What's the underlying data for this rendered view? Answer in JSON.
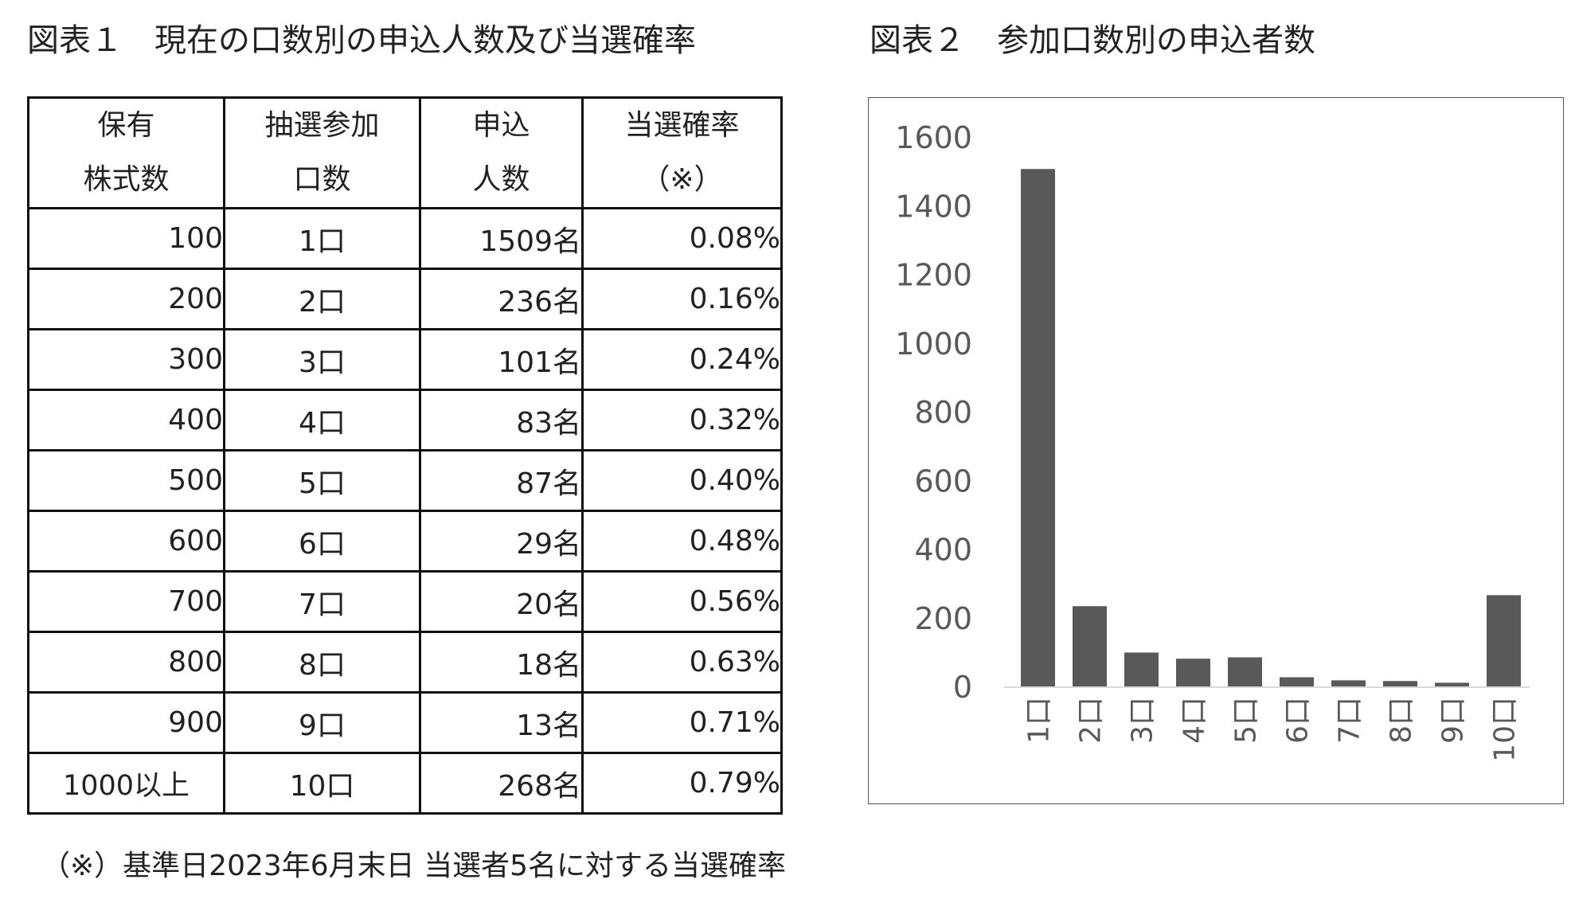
{
  "figure1": {
    "title": "図表１　現在の口数別の申込人数及び当選確率",
    "headers": [
      [
        "保有",
        "株式数"
      ],
      [
        "抽選参加",
        "口数"
      ],
      [
        "申込",
        "人数"
      ],
      [
        "当選確率",
        "（※）"
      ]
    ],
    "rows": [
      [
        "100",
        "1口",
        "1509名",
        "0.08%"
      ],
      [
        "200",
        "2口",
        "236名",
        "0.16%"
      ],
      [
        "300",
        "3口",
        "101名",
        "0.24%"
      ],
      [
        "400",
        "4口",
        "83名",
        "0.32%"
      ],
      [
        "500",
        "5口",
        "87名",
        "0.40%"
      ],
      [
        "600",
        "6口",
        "29名",
        "0.48%"
      ],
      [
        "700",
        "7口",
        "20名",
        "0.56%"
      ],
      [
        "800",
        "8口",
        "18名",
        "0.63%"
      ],
      [
        "900",
        "9口",
        "13名",
        "0.71%"
      ],
      [
        "1000以上",
        "10口",
        "268名",
        "0.79%"
      ]
    ],
    "footnote": "（※）基準日2023年6月末日 当選者5名に対する当選確率"
  },
  "chart_data": {
    "type": "bar",
    "title": "図表２　参加口数別の申込者数",
    "categories": [
      "1口",
      "2口",
      "3口",
      "4口",
      "5口",
      "6口",
      "7口",
      "8口",
      "9口",
      "10口"
    ],
    "values": [
      1509,
      236,
      101,
      83,
      87,
      29,
      20,
      18,
      13,
      268
    ],
    "xlabel": "",
    "ylabel": "",
    "ylim": [
      0,
      1600
    ],
    "yticks": [
      "0",
      "200",
      "400",
      "600",
      "800",
      "1000",
      "1200",
      "1400",
      "1600"
    ],
    "grid": false,
    "legend": "none",
    "bar_color": "#595959",
    "axis_color": "#d9d9d9",
    "tick_label_color": "#595959"
  }
}
